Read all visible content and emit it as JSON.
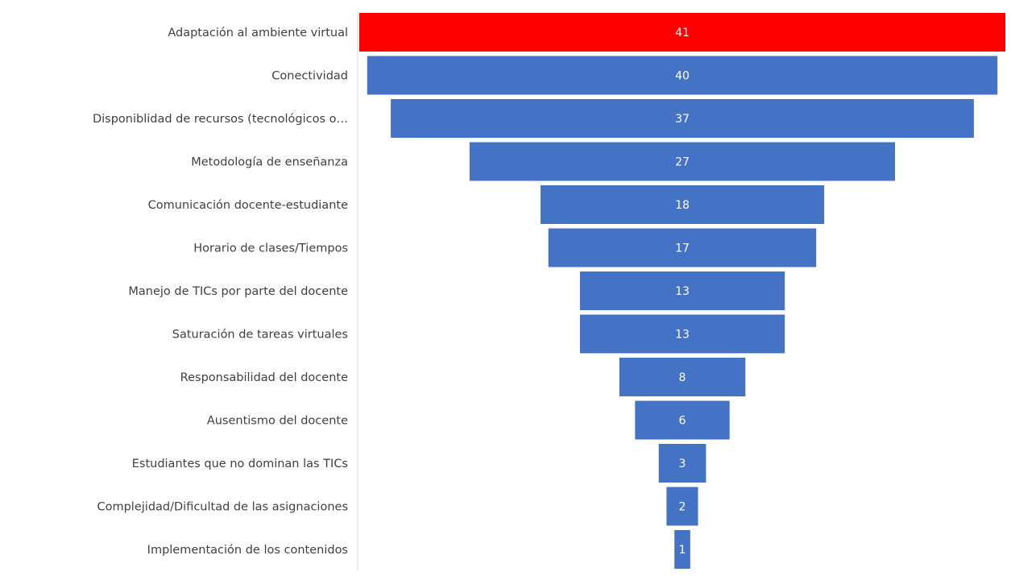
{
  "chart_data": {
    "type": "bar",
    "subtype": "funnel",
    "title": "",
    "xlabel": "",
    "ylabel": "",
    "grid": false,
    "legend": "none",
    "categories": [
      "Adaptación al ambiente virtual",
      "Conectividad",
      "Disponiblidad de recursos (tecnológicos o…",
      "Metodología de enseñanza",
      "Comunicación docente-estudiante",
      "Horario de clases/Tiempos",
      "Manejo de TICs por parte del docente",
      "Saturación de tareas virtuales",
      "Responsabilidad del docente",
      "Ausentismo del docente",
      "Estudiantes que no dominan las TICs",
      "Complejidad/Dificultad de las asignaciones",
      "Implementación de los contenidos"
    ],
    "values": [
      41,
      40,
      37,
      27,
      18,
      17,
      13,
      13,
      8,
      6,
      3,
      2,
      1
    ],
    "colors": {
      "highlight": "#FF0000",
      "default": "#4472C4",
      "value_text": "#FFFFFF",
      "category_text": "#404040",
      "axis_line": "#D9D9D9"
    },
    "highlight_index": 0
  }
}
